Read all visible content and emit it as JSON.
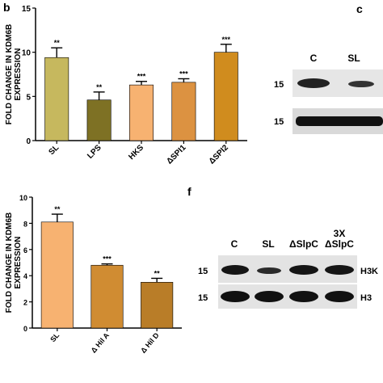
{
  "panels": {
    "b": "b",
    "c": "c",
    "f": "f"
  },
  "chart_data": [
    {
      "type": "bar",
      "panel": "b",
      "ylabel": "FOLD CHANGE IN KDM6B EXPRESSION",
      "ylim": [
        0,
        15
      ],
      "yticks": [
        0,
        5,
        10,
        15
      ],
      "categories": [
        "SL",
        "LPS",
        "HKS",
        "ΔSPI1",
        "ΔSPI2"
      ],
      "values": [
        9.4,
        4.6,
        6.3,
        6.6,
        10.0
      ],
      "errors": [
        1.1,
        0.9,
        0.4,
        0.4,
        0.9
      ],
      "significance": [
        "**",
        "**",
        "***",
        "***",
        "***"
      ],
      "colors": [
        "#c6b85e",
        "#7e7124",
        "#f7b271",
        "#dc9241",
        "#d08c1e"
      ]
    },
    {
      "type": "bar",
      "panel": "bottom",
      "ylabel": "FOLD CHANGE IN KDM6B EXPRESSION",
      "ylim": [
        0,
        10
      ],
      "yticks": [
        0,
        2,
        4,
        6,
        8,
        10
      ],
      "categories": [
        "SL",
        "Δ Hil A",
        "Δ Hil D"
      ],
      "values": [
        8.1,
        4.8,
        3.5
      ],
      "errors": [
        0.6,
        0.1,
        0.3
      ],
      "significance": [
        "**",
        "***",
        "**"
      ],
      "colors": [
        "#f7b271",
        "#d08c32",
        "#b97d28"
      ]
    }
  ],
  "blot_c": {
    "columns": [
      "C",
      "SL"
    ],
    "rows": [
      "15",
      "15"
    ]
  },
  "blot_f": {
    "columns": [
      "C",
      "SL",
      "ΔSlpC",
      "3X",
      "ΔSlpC"
    ],
    "rows": [
      "15",
      "15"
    ],
    "row_labels": [
      "H3K",
      "H3"
    ]
  }
}
